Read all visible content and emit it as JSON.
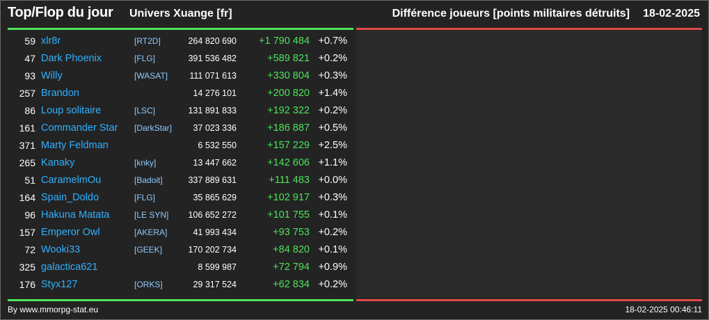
{
  "header": {
    "title": "Top/Flop du jour",
    "universe": "Univers Xuange [fr]",
    "subtitle": "Différence joueurs [points militaires détruits]",
    "date": "18-02-2025"
  },
  "colors": {
    "top_accent": "#4de35a",
    "flop_accent": "#e04a43",
    "player_name": "#2fb0ff",
    "alliance": "#8fcbff",
    "positive_diff": "#4de35a"
  },
  "top": [
    {
      "rank": "59",
      "name": "xlr8r",
      "alliance": "[RT2D]",
      "points": "264 820 690",
      "diff": "+1 790 484",
      "pct": "+0.7%"
    },
    {
      "rank": "47",
      "name": "Dark Phoenix",
      "alliance": "[FLG]",
      "points": "391 536 482",
      "diff": "+589 821",
      "pct": "+0.2%"
    },
    {
      "rank": "93",
      "name": "Willy",
      "alliance": "[WASAT]",
      "points": "111 071 613",
      "diff": "+330 804",
      "pct": "+0.3%"
    },
    {
      "rank": "257",
      "name": "Brandon",
      "alliance": "",
      "points": "14 276 101",
      "diff": "+200 820",
      "pct": "+1.4%"
    },
    {
      "rank": "86",
      "name": "Loup solitaire",
      "alliance": "[LSC]",
      "points": "131 891 833",
      "diff": "+192 322",
      "pct": "+0.2%"
    },
    {
      "rank": "161",
      "name": "Commander Star",
      "alliance": "[DarkStar]",
      "points": "37 023 336",
      "diff": "+186 887",
      "pct": "+0.5%"
    },
    {
      "rank": "371",
      "name": "Marty Feldman",
      "alliance": "",
      "points": "6 532 550",
      "diff": "+157 229",
      "pct": "+2.5%"
    },
    {
      "rank": "265",
      "name": "Kanaky",
      "alliance": "[knky]",
      "points": "13 447 662",
      "diff": "+142 606",
      "pct": "+1.1%"
    },
    {
      "rank": "51",
      "name": "CaramelmOu",
      "alliance": "[Badoit]",
      "points": "337 889 631",
      "diff": "+111 483",
      "pct": "+0.0%"
    },
    {
      "rank": "164",
      "name": "Spain_Doldo",
      "alliance": "[FLG]",
      "points": "35 865 629",
      "diff": "+102 917",
      "pct": "+0.3%"
    },
    {
      "rank": "96",
      "name": "Hakuna Matata",
      "alliance": "[LE SYN]",
      "points": "106 652 272",
      "diff": "+101 755",
      "pct": "+0.1%"
    },
    {
      "rank": "157",
      "name": "Emperor Owl",
      "alliance": "[AKERA]",
      "points": "41 993 434",
      "diff": "+93 753",
      "pct": "+0.2%"
    },
    {
      "rank": "72",
      "name": "Wooki33",
      "alliance": "[GEEK]",
      "points": "170 202 734",
      "diff": "+84 820",
      "pct": "+0.1%"
    },
    {
      "rank": "325",
      "name": "galactica621",
      "alliance": "",
      "points": "8 599 987",
      "diff": "+72 794",
      "pct": "+0.9%"
    },
    {
      "rank": "176",
      "name": "Styx127",
      "alliance": "[ORKS]",
      "points": "29 317 524",
      "diff": "+62 834",
      "pct": "+0.2%"
    }
  ],
  "flop": [],
  "footer": {
    "credit": "By www.mmorpg-stat.eu",
    "timestamp": "18-02-2025 00:46:11"
  }
}
